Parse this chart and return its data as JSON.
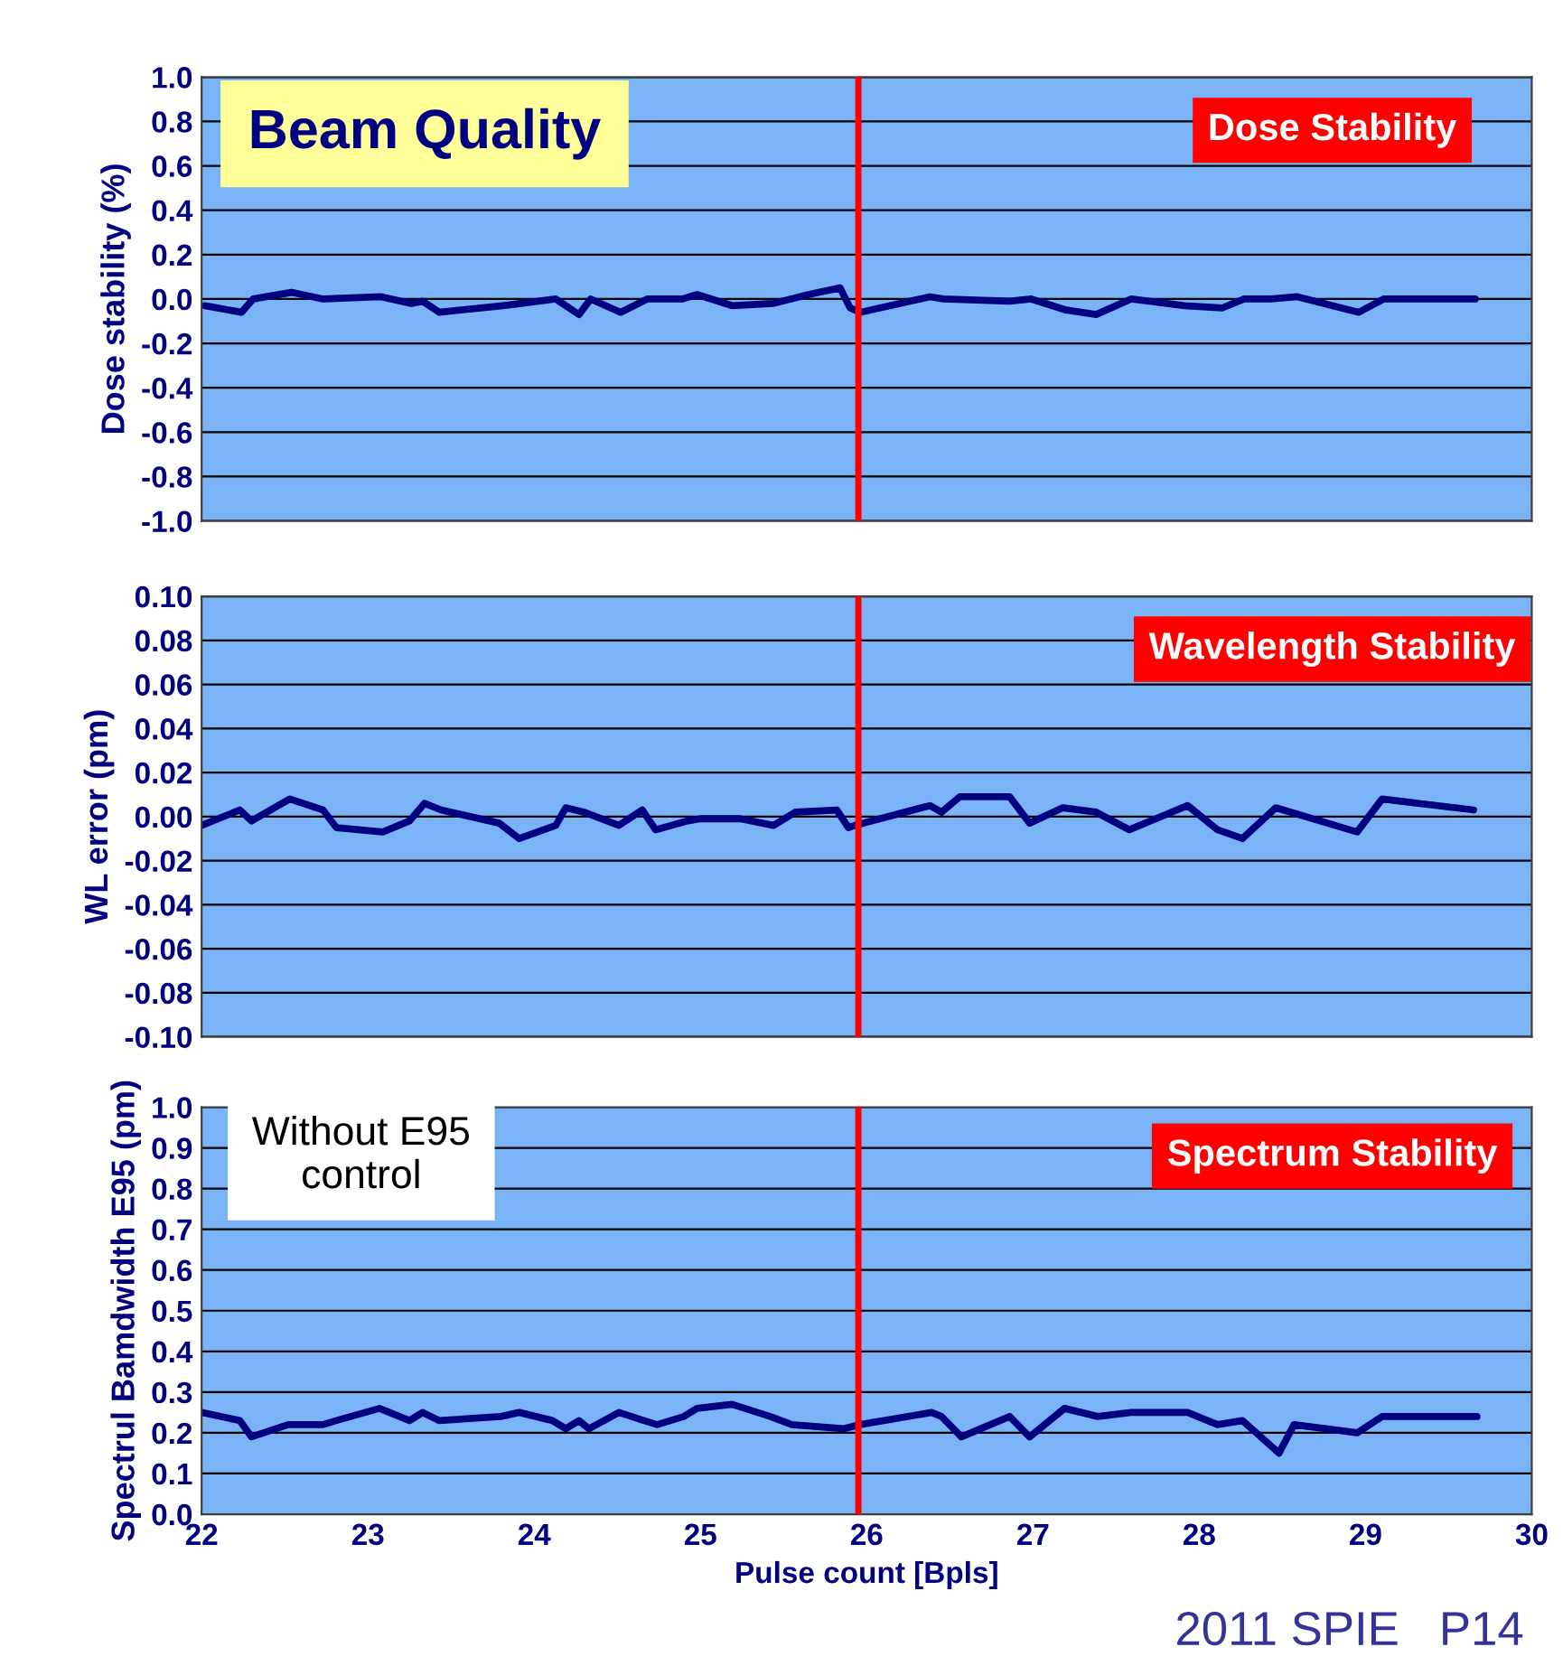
{
  "chart_data": [
    {
      "type": "line",
      "title": "Beam Quality",
      "ylabel": "Dose stability (%)",
      "annotations": [
        "Dose Stability"
      ],
      "xlim": [
        22,
        30
      ],
      "xticks": [
        22,
        23,
        24,
        25,
        26,
        27,
        28,
        29,
        30
      ],
      "ylim": [
        -1.0,
        1.0
      ],
      "yticks": [
        {
          "value": -1.0,
          "label": "-1.0"
        },
        -0.8,
        -0.6,
        -0.4,
        -0.2,
        {
          "value": 0.0,
          "label": "0.0"
        },
        0.2,
        0.4,
        0.6,
        0.8,
        {
          "value": 1.0,
          "label": "1.0"
        }
      ],
      "tick_labels": "y",
      "grid": "y",
      "legend": false,
      "marker": "none",
      "line_style": "solid",
      "ref_lines": [
        {
          "axis": "x",
          "value": 25.95,
          "label": null,
          "color": "#ff0000"
        }
      ],
      "series": [
        {
          "color": "#000080",
          "x": [
            22.02,
            22.24,
            22.31,
            22.54,
            22.73,
            23.08,
            23.26,
            23.33,
            23.43,
            23.81,
            23.92,
            24.13,
            24.27,
            24.34,
            24.52,
            24.68,
            24.89,
            24.98,
            25.19,
            25.44,
            25.65,
            25.84,
            25.9,
            25.96,
            26.38,
            26.46,
            26.86,
            26.99,
            27.2,
            27.38,
            27.59,
            27.91,
            28.14,
            28.27,
            28.43,
            28.59,
            28.96,
            29.11,
            29.66
          ],
          "values": [
            -0.03,
            -0.06,
            0.0,
            0.03,
            0.0,
            0.01,
            -0.02,
            -0.01,
            -0.06,
            -0.03,
            -0.02,
            0.0,
            -0.07,
            0.0,
            -0.06,
            0.0,
            0.0,
            0.02,
            -0.03,
            -0.02,
            0.02,
            0.05,
            -0.04,
            -0.06,
            0.01,
            0.0,
            -0.01,
            0.0,
            -0.05,
            -0.07,
            0.0,
            -0.03,
            -0.04,
            0.0,
            0.0,
            0.01,
            -0.06,
            0.0,
            0.0
          ]
        }
      ]
    },
    {
      "type": "line",
      "ylabel": "WL error (pm)",
      "annotations": [
        "Wavelength Stability"
      ],
      "xlim": [
        22,
        30
      ],
      "xticks": [
        22,
        23,
        24,
        25,
        26,
        27,
        28,
        29,
        30
      ],
      "ylim": [
        -0.1,
        0.1
      ],
      "yticks": [
        {
          "value": -0.1,
          "label": "-0.10"
        },
        {
          "value": -0.08,
          "label": "-0.08"
        },
        {
          "value": -0.06,
          "label": "-0.06"
        },
        {
          "value": -0.04,
          "label": "-0.04"
        },
        {
          "value": -0.02,
          "label": "-0.02"
        },
        {
          "value": 0.0,
          "label": "0.00"
        },
        {
          "value": 0.02,
          "label": "0.02"
        },
        {
          "value": 0.04,
          "label": "0.04"
        },
        {
          "value": 0.06,
          "label": "0.06"
        },
        {
          "value": 0.08,
          "label": "0.08"
        },
        {
          "value": 0.1,
          "label": "0.10"
        }
      ],
      "tick_labels": "y",
      "grid": "y",
      "legend": false,
      "marker": "none",
      "line_style": "solid",
      "ref_lines": [
        {
          "axis": "x",
          "value": 25.95,
          "label": null,
          "color": "#ff0000"
        }
      ],
      "series": [
        {
          "color": "#000080",
          "x": [
            22.0,
            22.23,
            22.3,
            22.53,
            22.73,
            22.81,
            23.09,
            23.25,
            23.34,
            23.44,
            23.79,
            23.91,
            24.13,
            24.19,
            24.3,
            24.51,
            24.65,
            24.73,
            24.92,
            25.0,
            25.24,
            25.44,
            25.57,
            25.82,
            25.89,
            25.93,
            26.38,
            26.45,
            26.56,
            26.86,
            26.98,
            27.18,
            27.38,
            27.58,
            27.93,
            28.11,
            28.26,
            28.46,
            28.95,
            29.1,
            29.65
          ],
          "values": [
            -0.004,
            0.003,
            -0.002,
            0.008,
            0.003,
            -0.005,
            -0.007,
            -0.002,
            0.006,
            0.003,
            -0.003,
            -0.01,
            -0.004,
            0.004,
            0.002,
            -0.004,
            0.003,
            -0.006,
            -0.002,
            -0.001,
            -0.001,
            -0.004,
            0.002,
            0.003,
            -0.005,
            -0.004,
            0.005,
            0.002,
            0.009,
            0.009,
            -0.003,
            0.004,
            0.002,
            -0.006,
            0.005,
            -0.006,
            -0.01,
            0.004,
            -0.007,
            0.008,
            0.003
          ]
        }
      ]
    },
    {
      "type": "line",
      "ylabel": "Spectrul Bamdwidth E95 (pm)",
      "xlabel": "Pulse count [Bpls]",
      "annotations": [
        "Spectrum Stability",
        "Without E95\ncontrol",
        "2011 SPIE   P14"
      ],
      "xlim": [
        22,
        30
      ],
      "xticks": [
        22,
        23,
        24,
        25,
        26,
        27,
        28,
        29,
        30
      ],
      "ylim": [
        0.0,
        1.0
      ],
      "yticks": [
        {
          "value": 0.0,
          "label": "0.0"
        },
        0.1,
        0.2,
        0.3,
        0.4,
        0.5,
        0.6,
        0.7,
        0.8,
        0.9,
        {
          "value": 1.0,
          "label": "1.0"
        }
      ],
      "grid": "y",
      "legend": false,
      "marker": "none",
      "line_style": "solid",
      "ref_lines": [
        {
          "axis": "x",
          "value": 25.95,
          "label": null,
          "color": "#ff0000"
        }
      ],
      "series": [
        {
          "color": "#000080",
          "x": [
            22.0,
            22.23,
            22.3,
            22.52,
            22.73,
            22.81,
            23.07,
            23.25,
            23.33,
            23.43,
            23.8,
            23.91,
            24.11,
            24.19,
            24.27,
            24.33,
            24.51,
            24.66,
            24.74,
            24.9,
            24.98,
            25.19,
            25.42,
            25.55,
            25.86,
            25.96,
            26.39,
            26.45,
            26.57,
            26.86,
            26.98,
            27.19,
            27.39,
            27.59,
            27.93,
            28.11,
            28.26,
            28.48,
            28.57,
            28.95,
            29.1,
            29.67
          ],
          "values": [
            0.25,
            0.23,
            0.19,
            0.22,
            0.22,
            0.23,
            0.26,
            0.23,
            0.25,
            0.23,
            0.24,
            0.25,
            0.23,
            0.21,
            0.23,
            0.21,
            0.25,
            0.23,
            0.22,
            0.24,
            0.26,
            0.27,
            0.24,
            0.22,
            0.21,
            0.22,
            0.25,
            0.24,
            0.19,
            0.24,
            0.19,
            0.26,
            0.24,
            0.25,
            0.25,
            0.22,
            0.23,
            0.15,
            0.22,
            0.2,
            0.24,
            0.24
          ]
        }
      ]
    }
  ]
}
